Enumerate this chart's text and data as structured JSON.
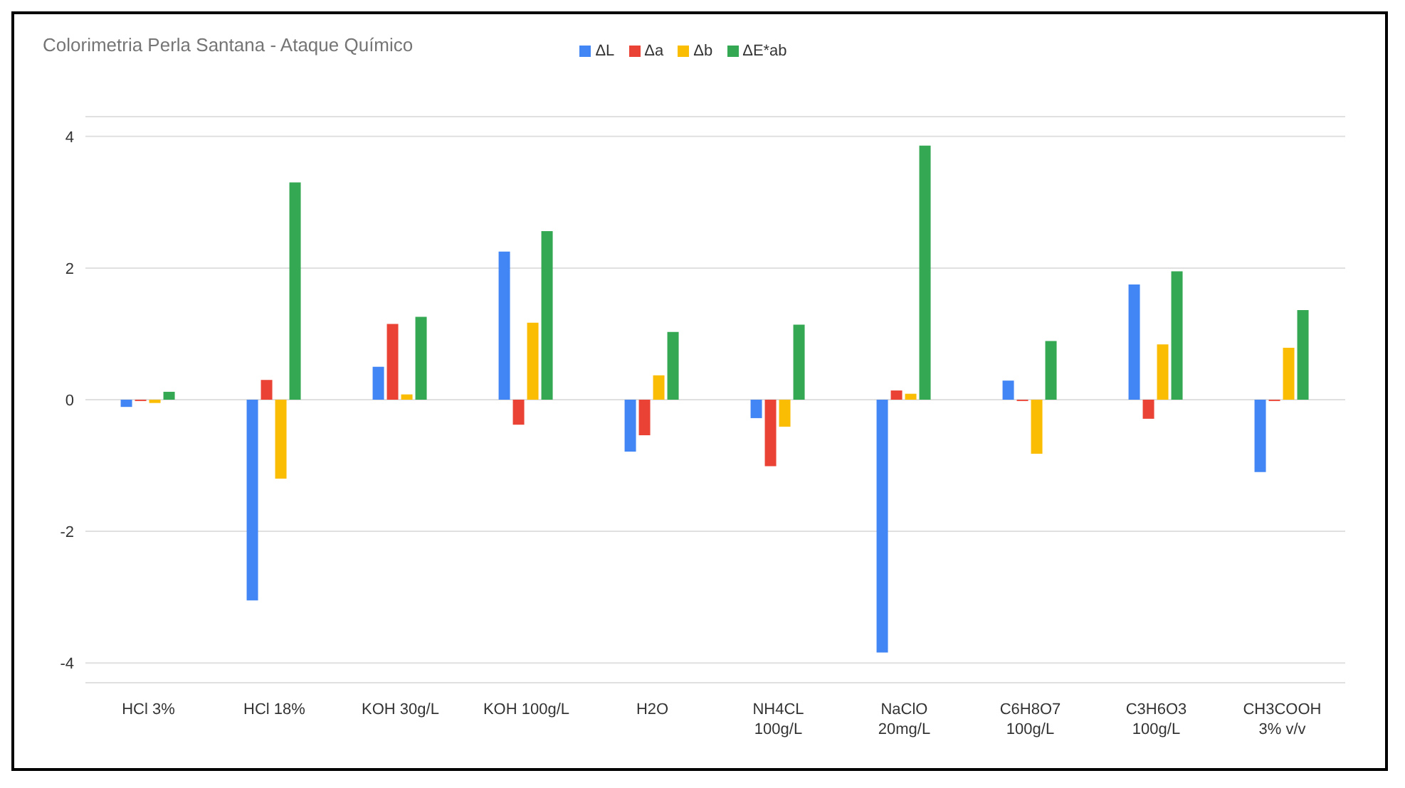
{
  "chart_data": {
    "type": "bar",
    "title": "Colorimetria Perla Santana - Ataque Químico",
    "categories": [
      "HCl 3%",
      "HCl 18%",
      "KOH 30g/L",
      "KOH 100g/L",
      "H2O",
      "NH4CL 100g/L",
      "NaClO 20mg/L",
      "C6H8O7 100g/L",
      "C3H6O3 100g/L",
      "CH3COOH 3% v/v"
    ],
    "series": [
      {
        "name": "ΔL",
        "color": "#4285f4",
        "values": [
          -0.11,
          -3.05,
          0.5,
          2.25,
          -0.79,
          -0.28,
          -3.84,
          0.29,
          1.75,
          -1.1
        ]
      },
      {
        "name": "Δa",
        "color": "#ea4335",
        "values": [
          -0.02,
          0.3,
          1.15,
          -0.38,
          -0.54,
          -1.01,
          0.14,
          -0.02,
          -0.29,
          -0.02
        ]
      },
      {
        "name": "Δb",
        "color": "#fbbc04",
        "values": [
          -0.05,
          -1.2,
          0.08,
          1.17,
          0.37,
          -0.41,
          0.09,
          -0.82,
          0.84,
          0.79
        ]
      },
      {
        "name": "ΔE*ab",
        "color": "#34a853",
        "values": [
          0.12,
          3.3,
          1.26,
          2.56,
          1.03,
          1.14,
          3.86,
          0.89,
          1.95,
          1.36
        ]
      }
    ],
    "ylim": [
      -4.3,
      4.3
    ],
    "yticks": [
      -4,
      -2,
      0,
      2,
      4
    ],
    "grid": "y",
    "legend": "top"
  }
}
